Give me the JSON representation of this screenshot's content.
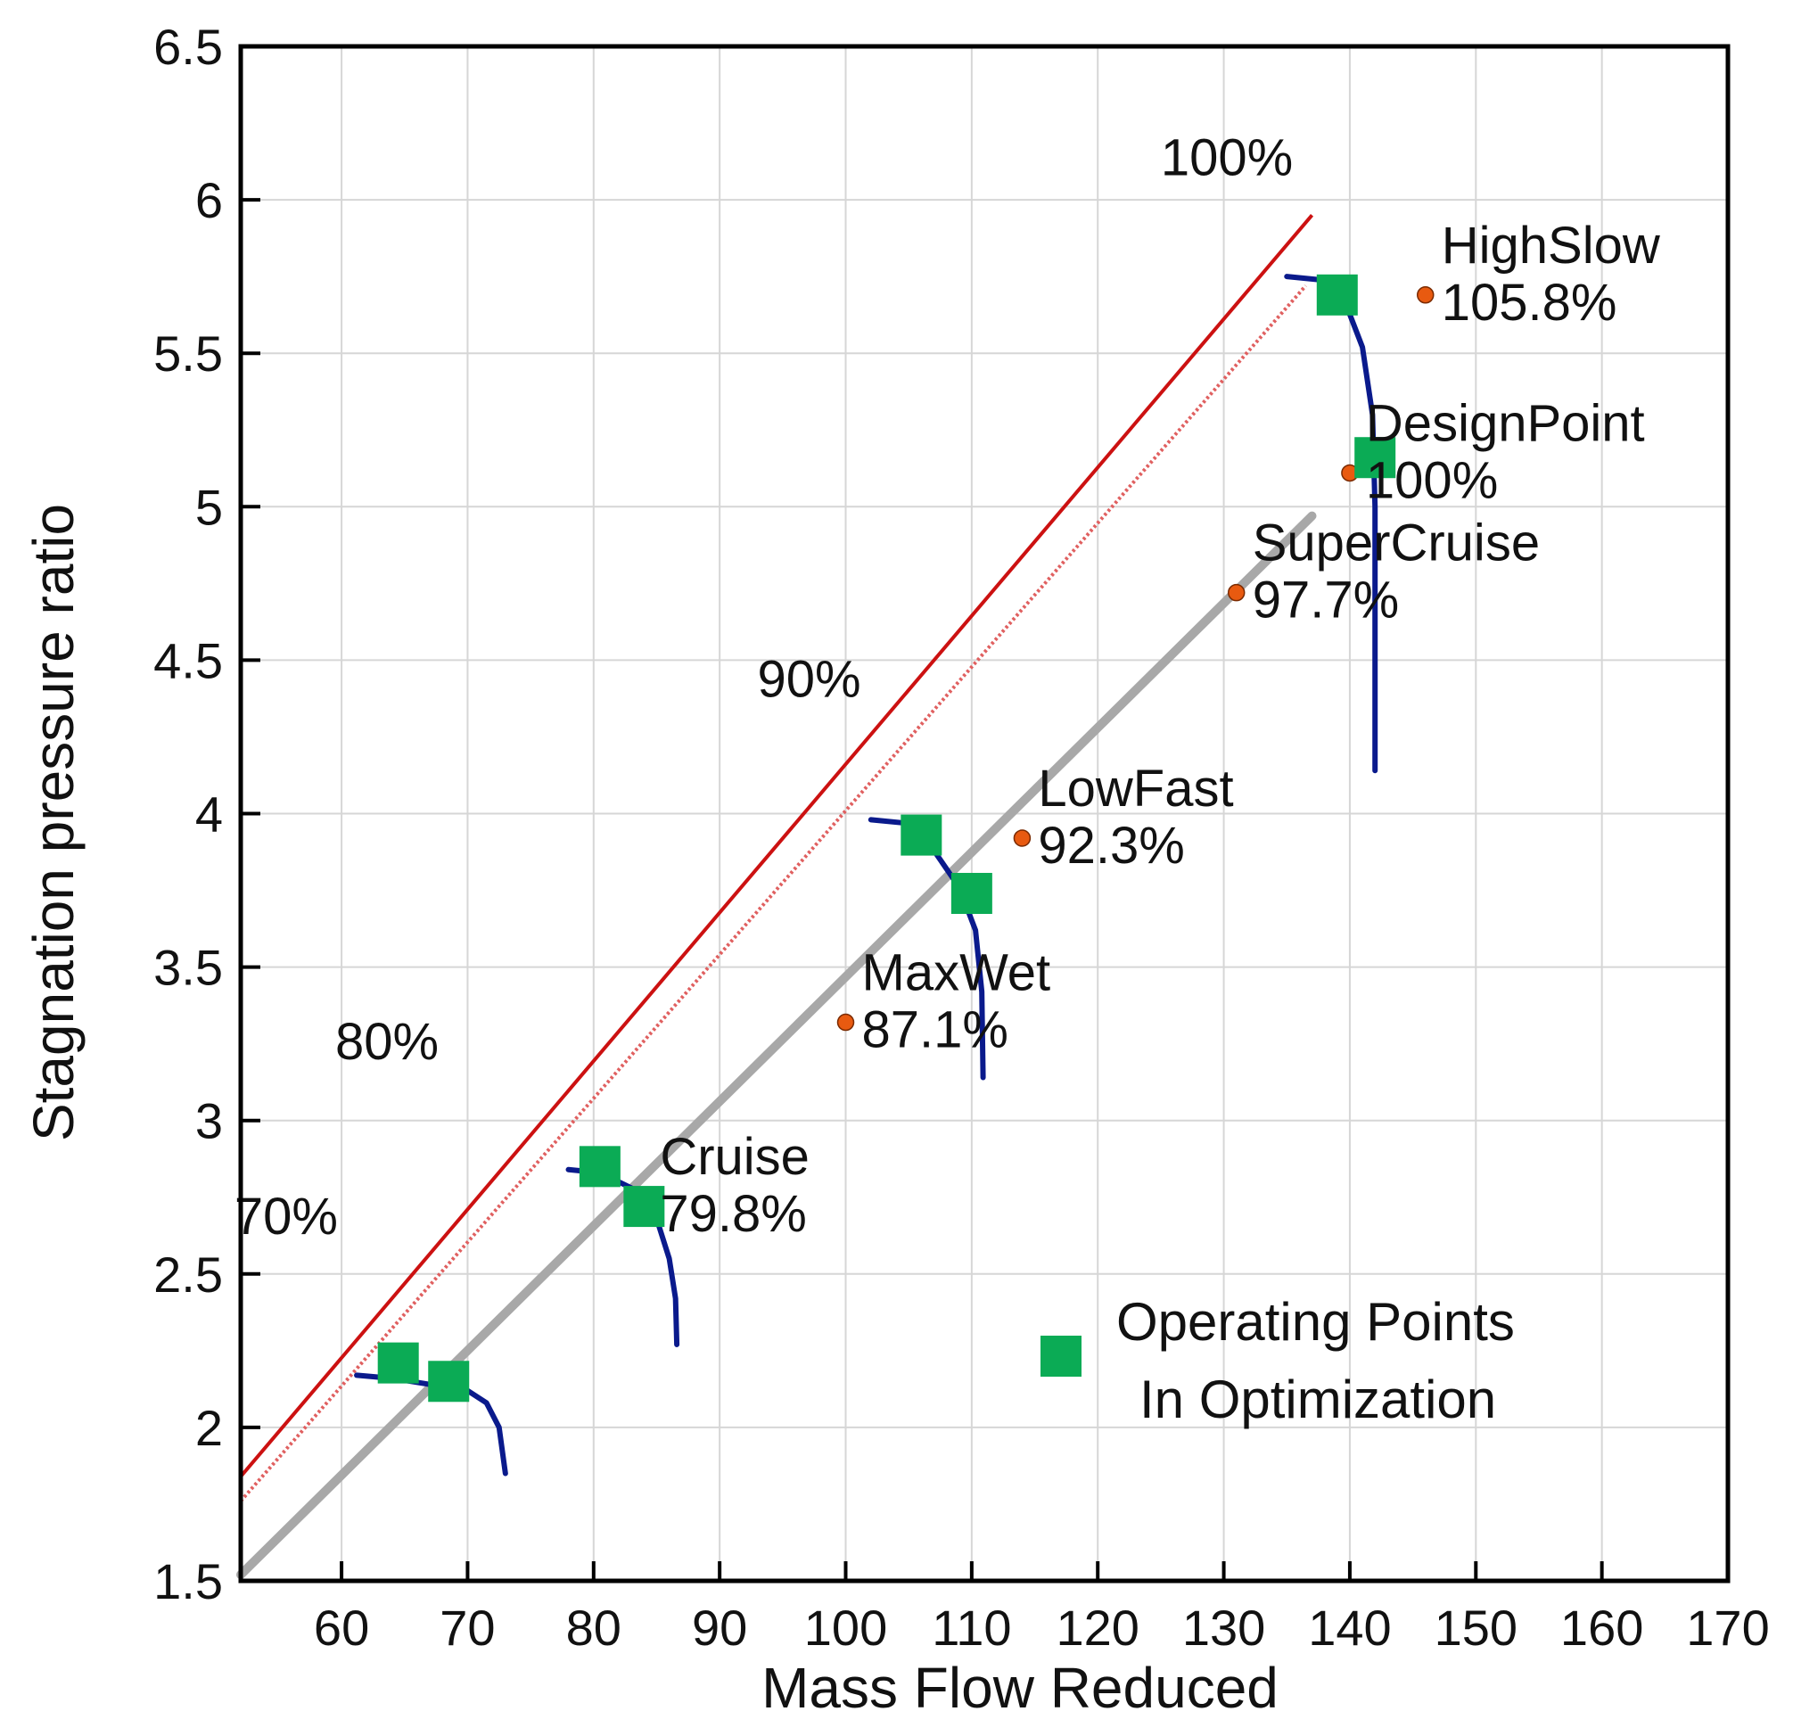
{
  "chart_data": {
    "type": "line",
    "title": "",
    "xlabel": "Mass Flow Reduced",
    "ylabel": "Stagnation pressure ratio",
    "xlim": [
      52,
      170
    ],
    "ylim": [
      1.5,
      6.5
    ],
    "xticks": [
      60,
      70,
      80,
      90,
      100,
      110,
      120,
      130,
      140,
      150,
      160,
      170
    ],
    "yticks": [
      1.5,
      2,
      2.5,
      3,
      3.5,
      4,
      4.5,
      5,
      5.5,
      6,
      6.5
    ],
    "ytick_labels": [
      "1.5",
      "2",
      "2.5",
      "3",
      "3.5",
      "4",
      "4.5",
      "5",
      "5.5",
      "6",
      "6.5"
    ],
    "grid": true,
    "colors": {
      "surge_line": "#cc1111",
      "surge_margin_line": "#e06060",
      "operating_line": "#a8a8a8",
      "speed_lines": "#0a1a8c",
      "points": "#e85a10",
      "operating_points_marker": "#0bab55",
      "frame": "#000000",
      "grid": "#d6d6d6"
    },
    "lines": {
      "surge": [
        [
          52,
          1.84
        ],
        [
          137,
          5.95
        ]
      ],
      "surge_margin": [
        [
          52,
          1.76
        ],
        [
          136.5,
          5.72
        ]
      ],
      "operating": [
        [
          52,
          1.52
        ],
        [
          137,
          4.97
        ]
      ]
    },
    "speed_lines": [
      {
        "speed": "70%",
        "points": [
          [
            61.2,
            2.17
          ],
          [
            64,
            2.16
          ],
          [
            67,
            2.14
          ],
          [
            70,
            2.12
          ],
          [
            71.5,
            2.08
          ],
          [
            72.5,
            2.0
          ],
          [
            73,
            1.85
          ]
        ]
      },
      {
        "speed": "80%",
        "points": [
          [
            78,
            2.84
          ],
          [
            80.5,
            2.83
          ],
          [
            83,
            2.78
          ],
          [
            85,
            2.68
          ],
          [
            86,
            2.55
          ],
          [
            86.5,
            2.42
          ],
          [
            86.6,
            2.27
          ]
        ]
      },
      {
        "speed": "90%",
        "points": [
          [
            102,
            3.98
          ],
          [
            104.5,
            3.97
          ],
          [
            107,
            3.88
          ],
          [
            109,
            3.76
          ],
          [
            110.3,
            3.62
          ],
          [
            110.8,
            3.42
          ],
          [
            110.9,
            3.14
          ]
        ]
      },
      {
        "speed": "100%",
        "points": [
          [
            135,
            5.75
          ],
          [
            137.5,
            5.74
          ],
          [
            139.5,
            5.68
          ],
          [
            141,
            5.52
          ],
          [
            141.8,
            5.3
          ],
          [
            142,
            5.0
          ],
          [
            142,
            4.6
          ],
          [
            142,
            4.14
          ]
        ]
      }
    ],
    "named_points": [
      {
        "name": "HighSlow",
        "value": "105.8%",
        "x": 146,
        "y": 5.69
      },
      {
        "name": "DesignPoint",
        "value": "100%",
        "x": 140,
        "y": 5.11
      },
      {
        "name": "SuperCruise",
        "value": "97.7%",
        "x": 131,
        "y": 4.72
      },
      {
        "name": "LowFast",
        "value": "92.3%",
        "x": 114,
        "y": 3.92
      },
      {
        "name": "MaxWet",
        "value": "87.1%",
        "x": 100,
        "y": 3.32
      },
      {
        "name": "Cruise",
        "value": "79.8%",
        "x": 84,
        "y": 2.72
      }
    ],
    "operating_points": [
      [
        64.5,
        2.21
      ],
      [
        68.5,
        2.15
      ],
      [
        80.5,
        2.85
      ],
      [
        84,
        2.72
      ],
      [
        106,
        3.93
      ],
      [
        110,
        3.74
      ],
      [
        139,
        5.69
      ],
      [
        142,
        5.16
      ]
    ],
    "speed_labels": [
      {
        "text": "100%",
        "x": 125,
        "y": 6.08
      },
      {
        "text": "90%",
        "x": 93,
        "y": 4.38
      },
      {
        "text": "80%",
        "x": 59.5,
        "y": 3.2
      },
      {
        "text": "70%",
        "x": 51.5,
        "y": 2.63
      }
    ],
    "legend": {
      "label_line1": "Operating Points",
      "label_line2": "In Optimization",
      "position": "bottom-right"
    }
  }
}
